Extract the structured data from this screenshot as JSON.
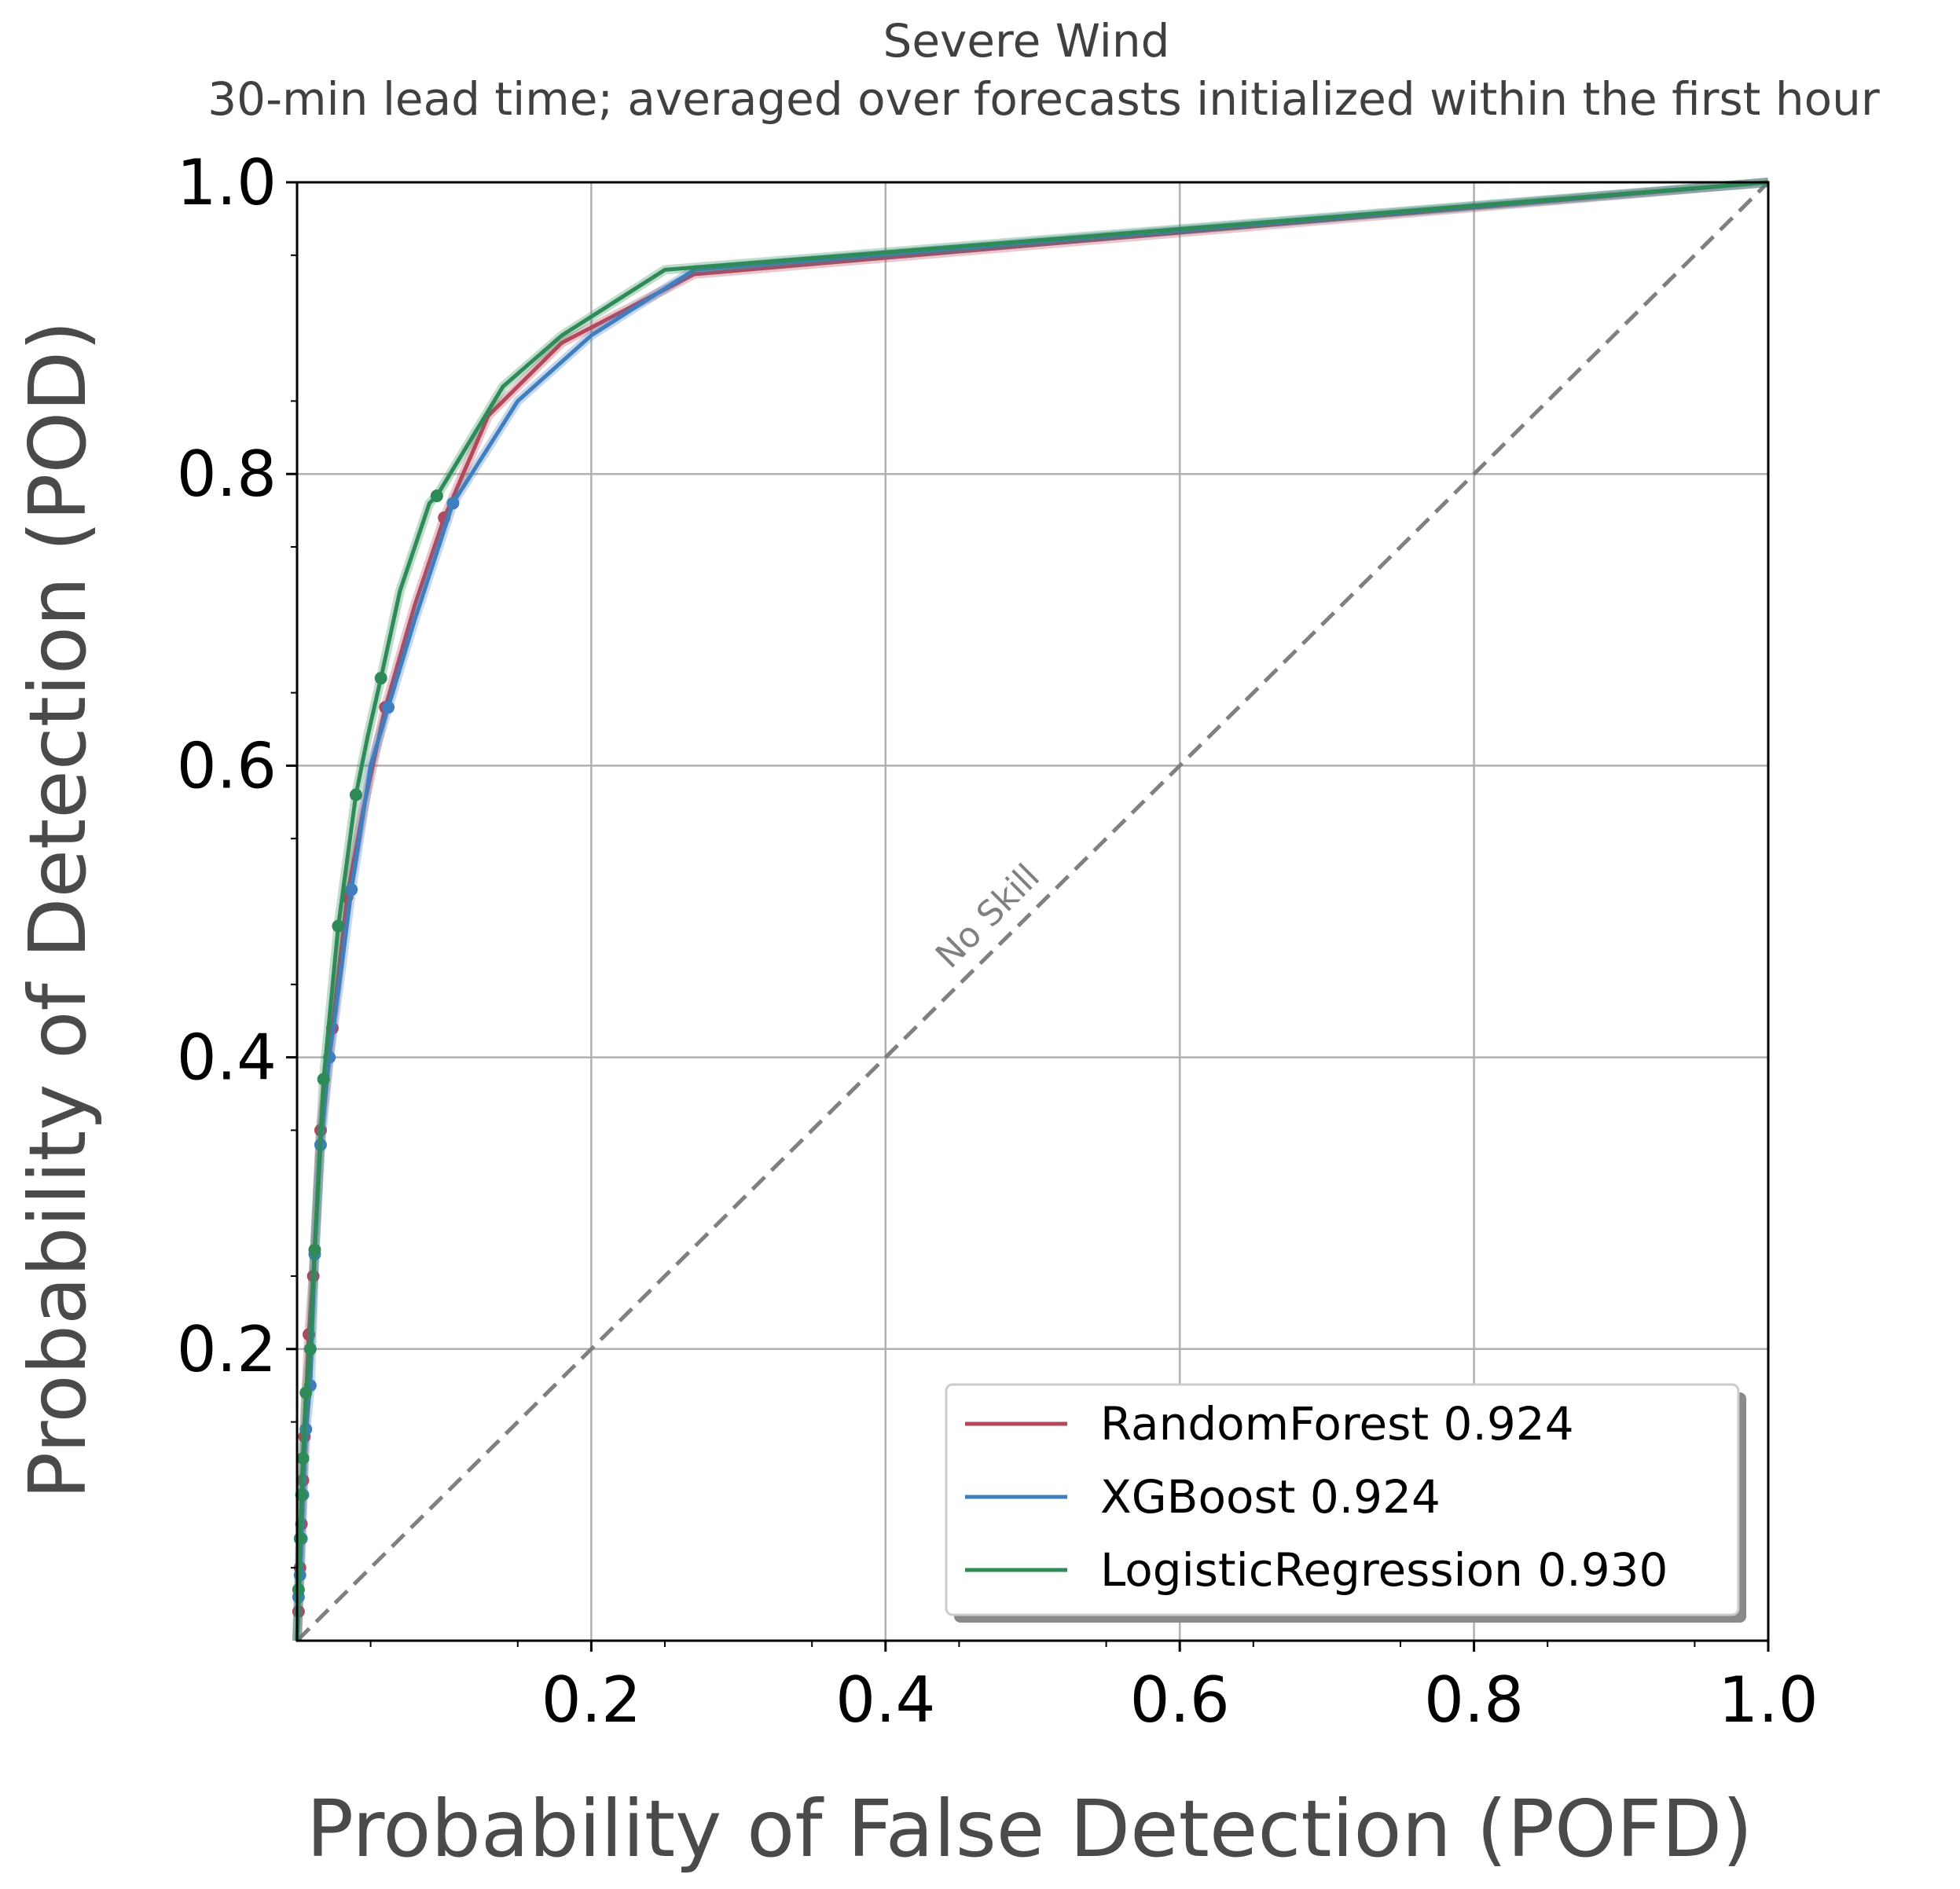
{
  "chart_data": {
    "type": "line",
    "title": "Severe Wind",
    "subtitle": "30-min lead time; averaged over forecasts initialized within the first hour",
    "xlabel": "Probability of False Detection (POFD)",
    "ylabel": "Probability of Detection (POD)",
    "xlim": [
      0,
      1
    ],
    "ylim": [
      0,
      1
    ],
    "xticks": [
      "0.2",
      "0.4",
      "0.6",
      "0.8",
      "1.0"
    ],
    "xtick_values": [
      0.2,
      0.4,
      0.6,
      0.8,
      1.0
    ],
    "yticks": [
      "0.2",
      "0.4",
      "0.6",
      "0.8",
      "1.0"
    ],
    "ytick_values": [
      0.2,
      0.4,
      0.6,
      0.8,
      1.0
    ],
    "grid": true,
    "legend_position": "bottom-right",
    "annotation": "No Skill",
    "reference_line": {
      "x": [
        0,
        1
      ],
      "y": [
        0,
        1
      ],
      "color": "#808080",
      "style": "dashed"
    },
    "series": [
      {
        "name": "RandomForest 0.924",
        "color": "#b5475a",
        "x": [
          0,
          0.001,
          0.002,
          0.003,
          0.004,
          0.005,
          0.008,
          0.011,
          0.016,
          0.024,
          0.034,
          0.045,
          0.06,
          0.08,
          0.1,
          0.13,
          0.18,
          0.27,
          1.0
        ],
        "y": [
          0,
          0.02,
          0.05,
          0.08,
          0.11,
          0.14,
          0.21,
          0.25,
          0.35,
          0.42,
          0.51,
          0.57,
          0.64,
          0.71,
          0.77,
          0.84,
          0.89,
          0.937,
          1.0
        ],
        "markers": [
          [
            0.001,
            0.02
          ],
          [
            0.002,
            0.05
          ],
          [
            0.003,
            0.08
          ],
          [
            0.004,
            0.11
          ],
          [
            0.005,
            0.14
          ],
          [
            0.008,
            0.21
          ],
          [
            0.011,
            0.25
          ],
          [
            0.016,
            0.35
          ],
          [
            0.024,
            0.42
          ],
          [
            0.034,
            0.51
          ],
          [
            0.06,
            0.64
          ],
          [
            0.1,
            0.77
          ]
        ]
      },
      {
        "name": "XGBoost 0.924",
        "color": "#3f7fbf",
        "x": [
          0,
          0.001,
          0.002,
          0.003,
          0.004,
          0.006,
          0.009,
          0.012,
          0.016,
          0.022,
          0.03,
          0.037,
          0.05,
          0.062,
          0.08,
          0.106,
          0.15,
          0.2,
          0.27,
          1.0
        ],
        "y": [
          0,
          0.03,
          0.045,
          0.07,
          0.1,
          0.145,
          0.175,
          0.265,
          0.34,
          0.4,
          0.46,
          0.515,
          0.6,
          0.64,
          0.7,
          0.78,
          0.85,
          0.895,
          0.94,
          1.0
        ],
        "markers": [
          [
            0.001,
            0.03
          ],
          [
            0.002,
            0.045
          ],
          [
            0.003,
            0.07
          ],
          [
            0.004,
            0.1
          ],
          [
            0.006,
            0.145
          ],
          [
            0.009,
            0.175
          ],
          [
            0.012,
            0.265
          ],
          [
            0.016,
            0.34
          ],
          [
            0.022,
            0.4
          ],
          [
            0.037,
            0.515
          ],
          [
            0.062,
            0.64
          ],
          [
            0.106,
            0.78
          ]
        ]
      },
      {
        "name": "LogisticRegression 0.930",
        "color": "#2e8b57",
        "x": [
          0,
          0.001,
          0.002,
          0.003,
          0.004,
          0.006,
          0.009,
          0.012,
          0.018,
          0.028,
          0.04,
          0.048,
          0.057,
          0.07,
          0.09,
          0.095,
          0.14,
          0.18,
          0.25,
          1.0
        ],
        "y": [
          0,
          0.035,
          0.07,
          0.1,
          0.125,
          0.17,
          0.2,
          0.268,
          0.385,
          0.49,
          0.58,
          0.62,
          0.66,
          0.72,
          0.78,
          0.785,
          0.86,
          0.895,
          0.94,
          1.0
        ],
        "markers": [
          [
            0.001,
            0.035
          ],
          [
            0.002,
            0.07
          ],
          [
            0.003,
            0.1
          ],
          [
            0.004,
            0.125
          ],
          [
            0.006,
            0.17
          ],
          [
            0.009,
            0.2
          ],
          [
            0.012,
            0.268
          ],
          [
            0.018,
            0.385
          ],
          [
            0.028,
            0.49
          ],
          [
            0.04,
            0.58
          ],
          [
            0.057,
            0.66
          ],
          [
            0.095,
            0.785
          ]
        ]
      }
    ]
  }
}
